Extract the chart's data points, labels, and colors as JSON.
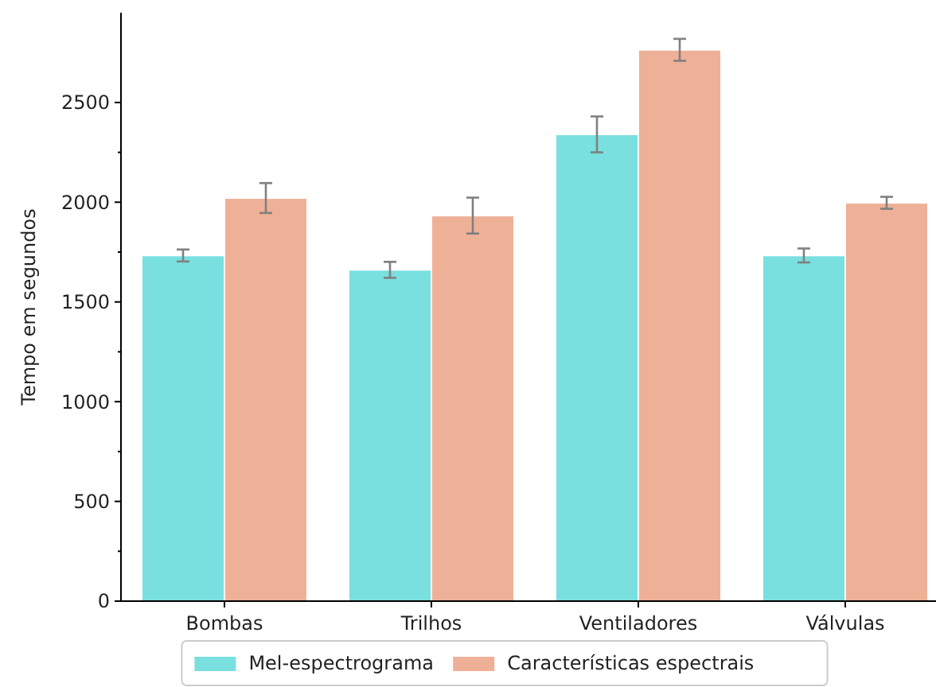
{
  "chart_data": {
    "type": "bar",
    "ylabel": "Tempo em segundos",
    "categories": [
      "Bombas",
      "Trilhos",
      "Ventiladores",
      "Válvulas"
    ],
    "series": [
      {
        "name": "Mel-espectrograma",
        "color": "#79dfdf",
        "values": [
          1733,
          1661,
          2340,
          1733
        ],
        "errors": [
          30,
          40,
          90,
          35
        ]
      },
      {
        "name": "Características espectrais",
        "color": "#efb098",
        "values": [
          2021,
          1933,
          2764,
          1997
        ],
        "errors": [
          75,
          90,
          55,
          30
        ]
      }
    ],
    "ylim": [
      0,
      2950
    ],
    "yticks": [
      0,
      500,
      1000,
      1500,
      2000,
      2500
    ],
    "legend": "bottom"
  }
}
